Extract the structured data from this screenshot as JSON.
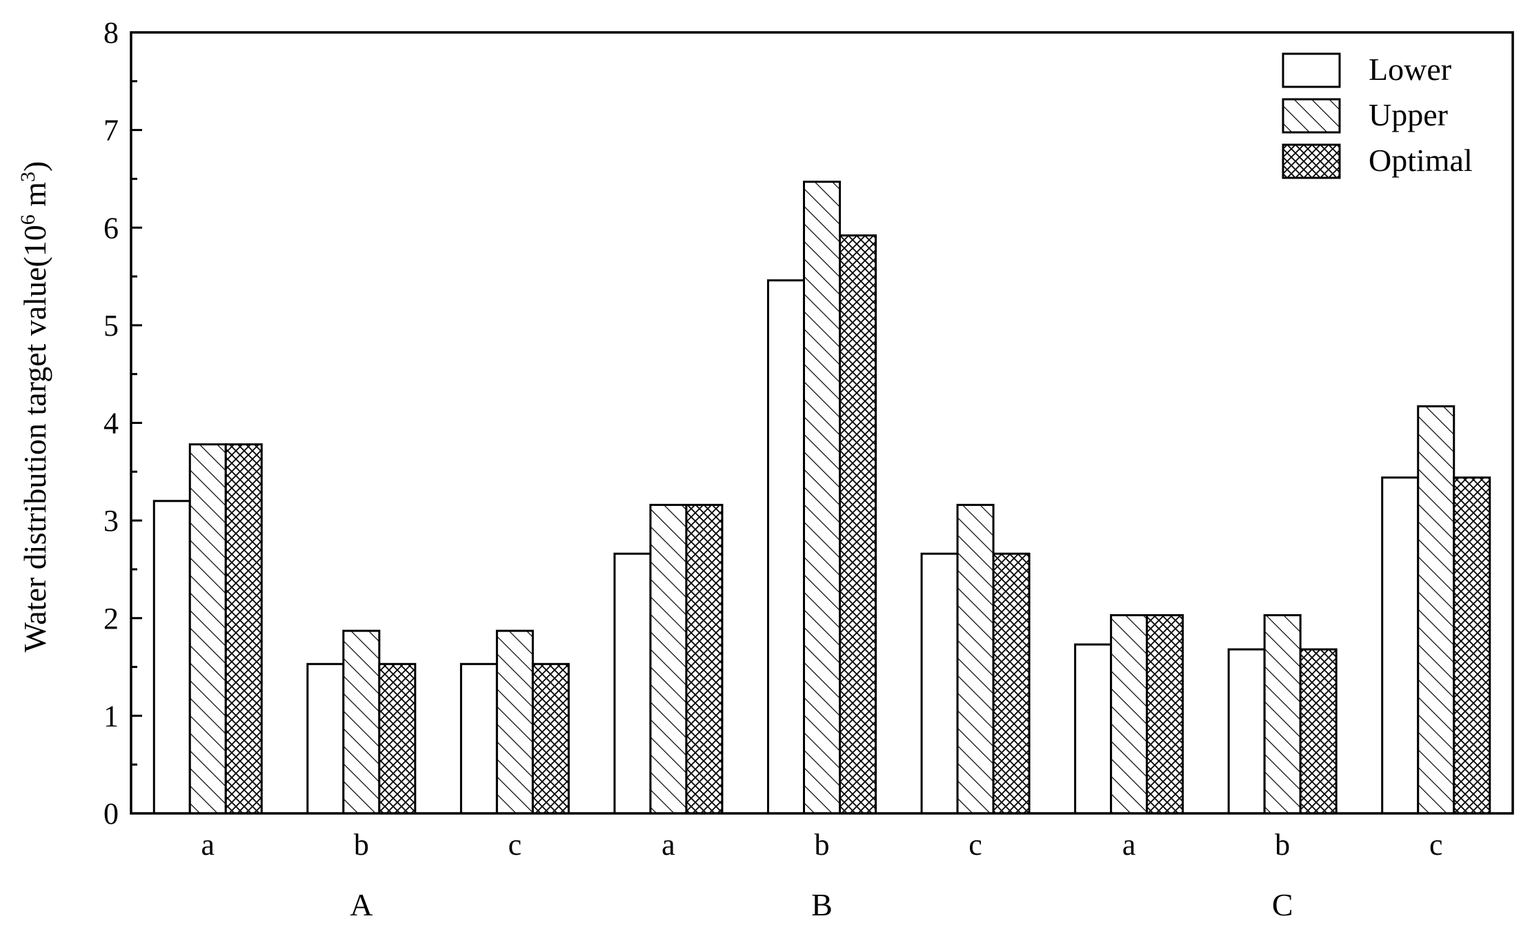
{
  "chart_data": {
    "type": "bar",
    "title": "",
    "xlabel": "",
    "ylabel": "Water distribution target value",
    "ylabel_unit_prefix": "(10",
    "ylabel_unit_exp": "6",
    "ylabel_unit_mid": " m",
    "ylabel_unit_exp2": "3",
    "ylabel_unit_suffix": ")",
    "ylim": [
      0,
      8
    ],
    "yticks": [
      "0",
      "1",
      "2",
      "3",
      "4",
      "5",
      "6",
      "7",
      "8"
    ],
    "categories": [
      "a",
      "b",
      "c",
      "a",
      "b",
      "c",
      "a",
      "b",
      "c"
    ],
    "groups": [
      {
        "label": "A",
        "categories": [
          "a",
          "b",
          "c"
        ]
      },
      {
        "label": "B",
        "categories": [
          "a",
          "b",
          "c"
        ]
      },
      {
        "label": "C",
        "categories": [
          "a",
          "b",
          "c"
        ]
      }
    ],
    "series": [
      {
        "name": "Lower",
        "pattern": "none",
        "values": [
          3.2,
          1.53,
          1.53,
          2.66,
          5.46,
          2.66,
          1.73,
          1.68,
          3.44
        ]
      },
      {
        "name": "Upper",
        "pattern": "diagonal-hatch",
        "values": [
          3.78,
          1.87,
          1.87,
          3.16,
          6.47,
          3.16,
          2.03,
          2.03,
          4.17
        ]
      },
      {
        "name": "Optimal",
        "pattern": "cross-hatch",
        "values": [
          3.78,
          1.53,
          1.53,
          3.16,
          5.92,
          2.66,
          2.03,
          1.68,
          3.44
        ]
      }
    ],
    "legend_position": "top-right",
    "grid": false,
    "colors": {
      "stroke": "#000000",
      "fill": "#ffffff"
    }
  }
}
